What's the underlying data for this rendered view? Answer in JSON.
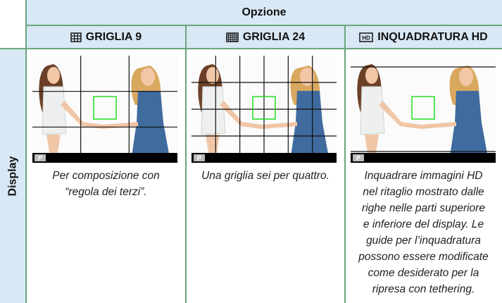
{
  "header": {
    "title": "Opzione",
    "row_label": "Display"
  },
  "columns": [
    {
      "label": "GRIGLIA 9",
      "caption_lines": [
        "Per composizione con",
        "“regola dei terzi”."
      ]
    },
    {
      "label": "GRIGLIA 24",
      "caption_lines": [
        "Una griglia sei per quattro."
      ]
    },
    {
      "label": "INQUADRATURA HD",
      "icon_text": "HD",
      "caption_lines": [
        "Inquadrare immagini HD",
        "nel ritaglio mostrato dalle",
        "righe nelle parti superiore",
        "e inferiore del display. Le",
        "guide per l’inquadratura",
        "possono essere modificate",
        "come desiderato per la",
        "ripresa con tethering."
      ]
    }
  ],
  "mode_label": "P"
}
